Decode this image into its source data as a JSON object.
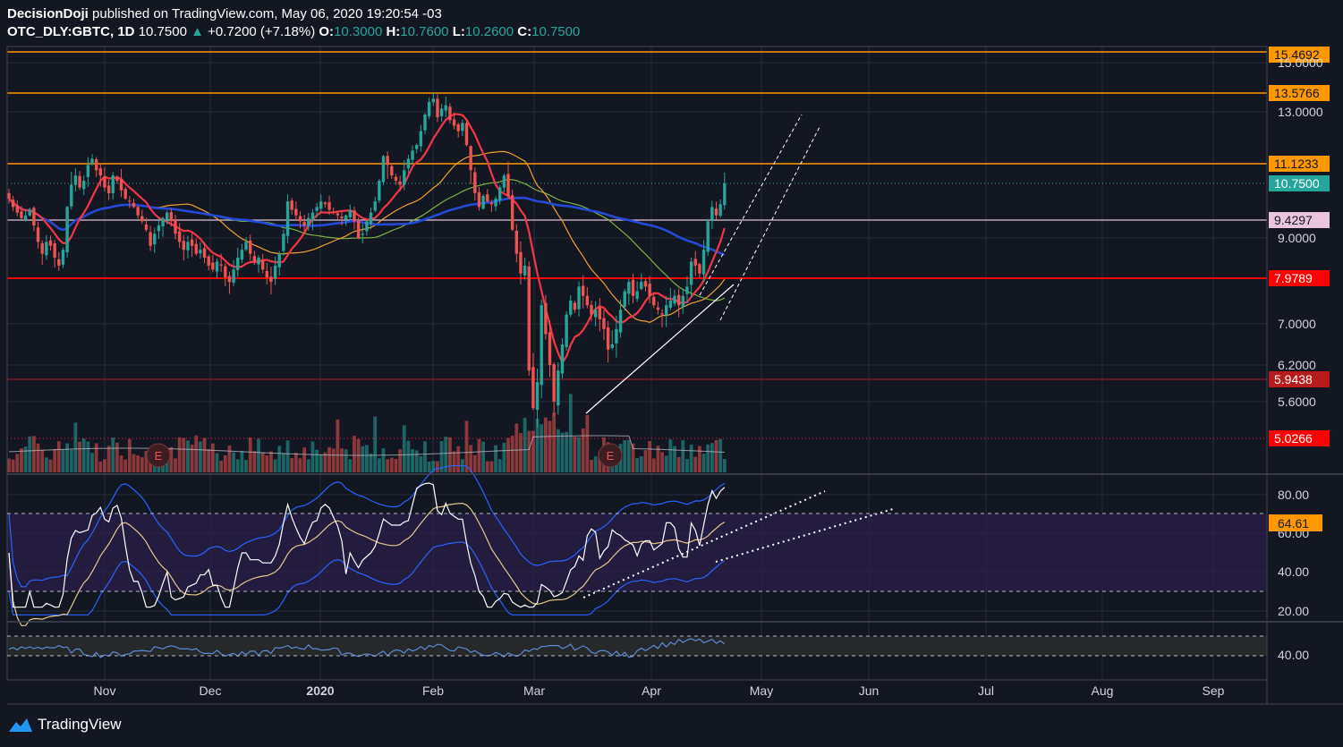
{
  "header": {
    "author": "DecisionDoji",
    "published": "published on TradingView.com, May 06, 2020 19:20:54 -03",
    "symbol": "OTC_DLY:GBTC, 1D",
    "last": "10.7500",
    "arrow": "▲",
    "change": "+0.7200 (+7.18%)",
    "o_label": "O:",
    "o": "10.3000",
    "h_label": "H:",
    "h": "10.7600",
    "l_label": "L:",
    "l": "10.2600",
    "c_label": "C:",
    "c": "10.7500"
  },
  "footer": {
    "brand": "TradingView"
  },
  "colors": {
    "background": "#131722",
    "up": "#26a69a",
    "down": "#ef5350",
    "ma_fast": "#f23645",
    "ma_mid": "#f0a030",
    "ma_slow": "#7cb342",
    "ma_long": "#2448d8",
    "orange_level": "#ff9800",
    "red_level": "#ff0000",
    "rsi_fill": "#2a1f4a"
  },
  "chart_data": [
    {
      "type": "candlestick",
      "name": "OTC_DLY:GBTC 1D",
      "x_ticks": [
        "Nov",
        "Dec",
        "2020",
        "Feb",
        "Mar",
        "Apr",
        "May",
        "Jun",
        "Jul",
        "Aug",
        "Sep"
      ],
      "price_axis_ticks": [
        "15.0000",
        "13.0000",
        "9.0000",
        "7.0000",
        "6.2000",
        "5.6000"
      ],
      "last_price": 10.75,
      "levels": [
        {
          "value": 15.4692,
          "label": "15.4692",
          "style": "orange"
        },
        {
          "value": 13.5766,
          "label": "13.5766",
          "style": "orange"
        },
        {
          "value": 11.1233,
          "label": "11.1233",
          "style": "orange"
        },
        {
          "value": 10.75,
          "label": "10.7500",
          "style": "last"
        },
        {
          "value": 9.4297,
          "label": "9.4297",
          "style": "pink"
        },
        {
          "value": 7.9789,
          "label": "7.9789",
          "style": "red"
        },
        {
          "value": 5.9438,
          "label": "5.9438",
          "style": "darkred"
        },
        {
          "value": 5.0266,
          "label": "5.0266",
          "style": "red-dotted"
        }
      ],
      "closes_approx": [
        10.2,
        9.9,
        9.7,
        9.5,
        9.6,
        9.8,
        9.3,
        8.9,
        8.6,
        8.9,
        8.8,
        8.5,
        8.3,
        8.7,
        9.9,
        10.7,
        10.9,
        10.6,
        10.8,
        11.1,
        11.3,
        11.0,
        10.9,
        10.6,
        10.4,
        10.9,
        10.8,
        10.5,
        10.2,
        10.1,
        9.9,
        9.6,
        9.4,
        9.2,
        8.8,
        9.1,
        9.3,
        9.5,
        9.7,
        9.4,
        9.1,
        8.9,
        8.7,
        8.9,
        8.8,
        8.6,
        8.7,
        8.5,
        8.3,
        8.2,
        8.4,
        8.3,
        8.0,
        7.9,
        8.2,
        8.5,
        8.7,
        8.9,
        8.6,
        8.4,
        8.5,
        8.2,
        8.0,
        7.9,
        8.3,
        8.6,
        9.1,
        10.1,
        9.8,
        9.6,
        9.4,
        9.3,
        9.5,
        9.7,
        9.9,
        10.1,
        10.0,
        9.8,
        9.7,
        9.6,
        9.5,
        9.6,
        9.8,
        9.4,
        9.0,
        9.1,
        9.4,
        9.7,
        10.1,
        10.8,
        11.4,
        11.1,
        10.9,
        10.8,
        10.7,
        11.0,
        11.3,
        11.6,
        11.8,
        12.3,
        12.9,
        13.3,
        13.4,
        12.8,
        13.1,
        13.2,
        12.7,
        12.5,
        12.3,
        12.6,
        11.8,
        11.0,
        10.4,
        9.9,
        10.3,
        10.1,
        10.0,
        10.2,
        10.6,
        10.9,
        10.3,
        9.2,
        8.6,
        8.1,
        8.3,
        6.1,
        5.5,
        5.9,
        7.4,
        6.8,
        6.2,
        5.6,
        6.1,
        6.6,
        7.2,
        7.5,
        7.3,
        7.8,
        7.6,
        7.4,
        7.2,
        7.3,
        7.1,
        6.9,
        6.5,
        6.6,
        6.9,
        7.3,
        7.7,
        7.9,
        7.6,
        7.7,
        7.9,
        7.8,
        7.6,
        7.4,
        7.3,
        7.2,
        7.4,
        7.5,
        7.6,
        7.4,
        7.6,
        7.8,
        8.4,
        8.3,
        8.1,
        8.7,
        9.4,
        9.9,
        9.6,
        10.0,
        10.75
      ]
    },
    {
      "type": "line",
      "name": "RSI panel",
      "y_ticks": [
        "80.00",
        "60.00",
        "40.00",
        "20.00"
      ],
      "last_value_label": "64.61",
      "guide_levels": [
        70,
        30
      ]
    },
    {
      "type": "line",
      "name": "Lower oscillator",
      "y_ticks": [
        "40.00"
      ],
      "guide_levels": [
        60,
        40
      ]
    }
  ]
}
